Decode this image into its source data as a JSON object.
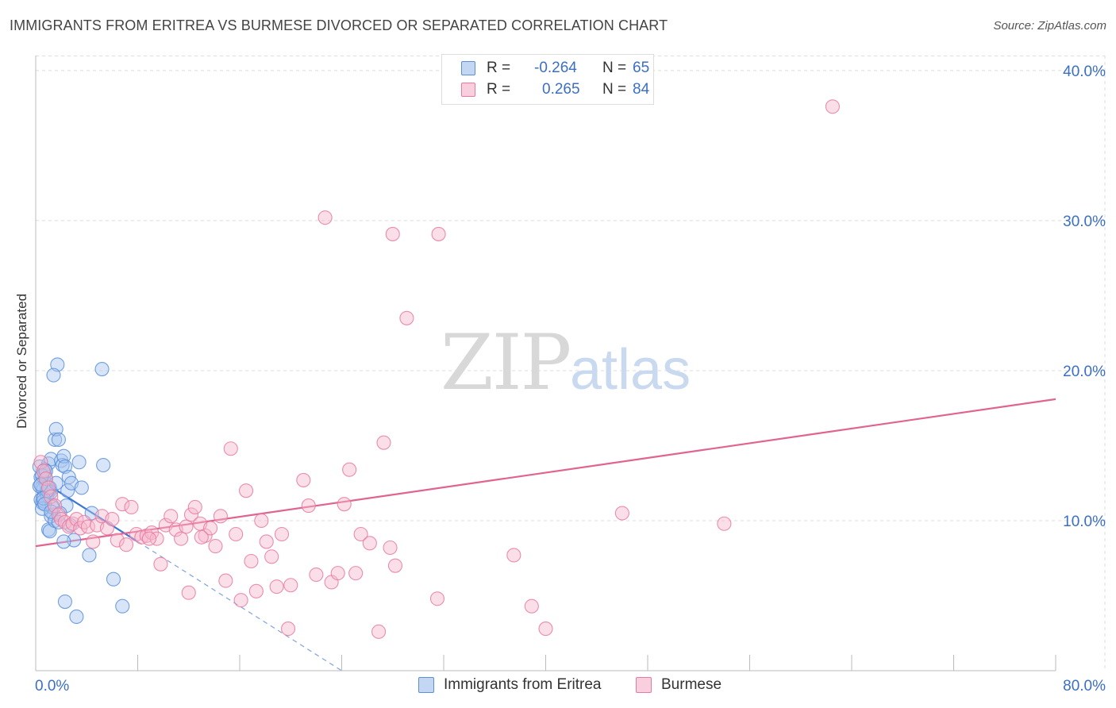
{
  "chart_data": {
    "type": "scatter",
    "title": "IMMIGRANTS FROM ERITREA VS BURMESE DIVORCED OR SEPARATED CORRELATION CHART",
    "source": "Source: ZipAtlas.com",
    "ylabel": "Divorced or Separated",
    "xlim": [
      0,
      80
    ],
    "ylim": [
      0,
      41
    ],
    "x_tick_labels": [
      "0.0%",
      "80.0%"
    ],
    "y_ticks": [
      10,
      20,
      30,
      40
    ],
    "y_tick_labels": [
      "10.0%",
      "20.0%",
      "30.0%",
      "40.0%"
    ],
    "watermark": {
      "zip": "ZIP",
      "atlas": "atlas"
    },
    "legend": [
      {
        "r_label": "R =",
        "r_value": "-0.264",
        "n_label": "N =",
        "n_value": "65"
      },
      {
        "r_label": "R =",
        "r_value": "0.265",
        "n_label": "N =",
        "n_value": "84"
      }
    ],
    "series": [
      {
        "name": "Immigrants from Eritrea",
        "color": "#5b8fd9",
        "fill": "#a9c6f0",
        "trend": {
          "x0": 0,
          "y0": 12.9,
          "x1": 8,
          "y1": 8.6,
          "dashed_to_x": 24,
          "dashed_to_y": 0
        },
        "points": [
          [
            0.3,
            13.6
          ],
          [
            0.4,
            12.9
          ],
          [
            0.5,
            12.2
          ],
          [
            0.6,
            11.6
          ],
          [
            0.5,
            11.2
          ],
          [
            0.7,
            13.1
          ],
          [
            0.8,
            12.5
          ],
          [
            0.9,
            11.9
          ],
          [
            1.0,
            13.8
          ],
          [
            1.1,
            12.0
          ],
          [
            1.2,
            14.1
          ],
          [
            1.3,
            11.0
          ],
          [
            1.4,
            10.4
          ],
          [
            1.5,
            15.4
          ],
          [
            1.6,
            16.1
          ],
          [
            1.7,
            20.4
          ],
          [
            1.4,
            19.7
          ],
          [
            1.8,
            15.4
          ],
          [
            2.0,
            14.0
          ],
          [
            2.1,
            13.7
          ],
          [
            2.2,
            14.3
          ],
          [
            2.3,
            13.6
          ],
          [
            2.4,
            11.0
          ],
          [
            2.5,
            12.0
          ],
          [
            2.6,
            12.9
          ],
          [
            2.8,
            12.5
          ],
          [
            3.0,
            8.7
          ],
          [
            3.2,
            3.6
          ],
          [
            3.4,
            13.9
          ],
          [
            3.6,
            12.2
          ],
          [
            4.2,
            7.7
          ],
          [
            4.4,
            10.5
          ],
          [
            5.2,
            20.1
          ],
          [
            5.3,
            13.7
          ],
          [
            6.1,
            6.1
          ],
          [
            6.8,
            4.3
          ],
          [
            2.3,
            4.6
          ],
          [
            1.0,
            9.4
          ],
          [
            1.1,
            9.3
          ],
          [
            1.2,
            10.3
          ],
          [
            0.4,
            11.4
          ],
          [
            0.6,
            12.1
          ],
          [
            0.7,
            13.4
          ],
          [
            0.8,
            12.8
          ],
          [
            0.9,
            11.7
          ],
          [
            1.0,
            12.0
          ],
          [
            1.1,
            12.2
          ],
          [
            1.2,
            11.9
          ],
          [
            0.3,
            12.3
          ],
          [
            0.5,
            13.0
          ],
          [
            0.6,
            11.3
          ],
          [
            0.8,
            13.3
          ],
          [
            0.9,
            12.0
          ],
          [
            1.3,
            10.9
          ],
          [
            1.5,
            10.0
          ],
          [
            1.6,
            12.5
          ],
          [
            1.9,
            10.5
          ],
          [
            2.2,
            8.6
          ],
          [
            2.7,
            9.7
          ],
          [
            0.5,
            10.8
          ],
          [
            0.6,
            11.5
          ],
          [
            0.7,
            11.1
          ],
          [
            1.8,
            9.9
          ],
          [
            1.2,
            10.6
          ],
          [
            0.4,
            12.4
          ]
        ]
      },
      {
        "name": "Burmese",
        "color": "#e87aa0",
        "fill": "#f6b8cc",
        "trend": {
          "x0": 0,
          "y0": 8.3,
          "x1": 80,
          "y1": 18.1
        },
        "points": [
          [
            0.4,
            13.9
          ],
          [
            0.6,
            13.3
          ],
          [
            0.8,
            12.8
          ],
          [
            1.0,
            12.2
          ],
          [
            1.2,
            11.6
          ],
          [
            1.5,
            11.0
          ],
          [
            1.8,
            10.4
          ],
          [
            2.0,
            10.1
          ],
          [
            2.3,
            9.9
          ],
          [
            2.6,
            9.6
          ],
          [
            2.9,
            9.8
          ],
          [
            3.2,
            10.1
          ],
          [
            3.5,
            9.5
          ],
          [
            3.8,
            9.9
          ],
          [
            4.1,
            9.6
          ],
          [
            4.5,
            8.6
          ],
          [
            4.8,
            9.7
          ],
          [
            5.2,
            10.3
          ],
          [
            5.6,
            9.5
          ],
          [
            6.0,
            10.1
          ],
          [
            6.4,
            8.7
          ],
          [
            6.8,
            11.1
          ],
          [
            7.1,
            8.4
          ],
          [
            7.5,
            10.9
          ],
          [
            7.9,
            9.1
          ],
          [
            8.3,
            8.9
          ],
          [
            8.7,
            9.0
          ],
          [
            9.1,
            9.2
          ],
          [
            9.5,
            8.8
          ],
          [
            9.8,
            7.1
          ],
          [
            10.2,
            9.7
          ],
          [
            10.6,
            10.3
          ],
          [
            11.0,
            9.4
          ],
          [
            11.4,
            8.8
          ],
          [
            11.8,
            9.6
          ],
          [
            12.2,
            10.4
          ],
          [
            12.5,
            10.9
          ],
          [
            12.0,
            5.2
          ],
          [
            12.9,
            9.8
          ],
          [
            13.3,
            9.0
          ],
          [
            13.7,
            9.5
          ],
          [
            14.1,
            8.3
          ],
          [
            14.5,
            10.3
          ],
          [
            14.9,
            6.0
          ],
          [
            15.3,
            14.8
          ],
          [
            15.7,
            9.1
          ],
          [
            16.1,
            4.7
          ],
          [
            16.5,
            12.0
          ],
          [
            16.9,
            7.3
          ],
          [
            17.3,
            5.3
          ],
          [
            17.7,
            10.0
          ],
          [
            18.1,
            8.6
          ],
          [
            18.5,
            7.6
          ],
          [
            18.9,
            5.6
          ],
          [
            19.3,
            9.1
          ],
          [
            20.0,
            5.7
          ],
          [
            19.8,
            2.8
          ],
          [
            21.0,
            12.7
          ],
          [
            21.4,
            11.0
          ],
          [
            22.0,
            6.4
          ],
          [
            22.7,
            30.2
          ],
          [
            23.2,
            5.9
          ],
          [
            23.7,
            6.5
          ],
          [
            24.2,
            11.1
          ],
          [
            24.6,
            13.4
          ],
          [
            25.1,
            6.5
          ],
          [
            25.5,
            9.1
          ],
          [
            26.2,
            8.5
          ],
          [
            26.9,
            2.6
          ],
          [
            27.3,
            15.2
          ],
          [
            27.8,
            8.2
          ],
          [
            28.0,
            29.1
          ],
          [
            28.2,
            7.0
          ],
          [
            29.1,
            23.5
          ],
          [
            31.5,
            4.8
          ],
          [
            31.6,
            29.1
          ],
          [
            37.5,
            7.7
          ],
          [
            38.9,
            4.3
          ],
          [
            40.0,
            2.8
          ],
          [
            46.0,
            10.5
          ],
          [
            54.0,
            9.8
          ],
          [
            62.5,
            37.6
          ],
          [
            8.9,
            8.8
          ],
          [
            13.0,
            8.9
          ]
        ]
      }
    ]
  }
}
